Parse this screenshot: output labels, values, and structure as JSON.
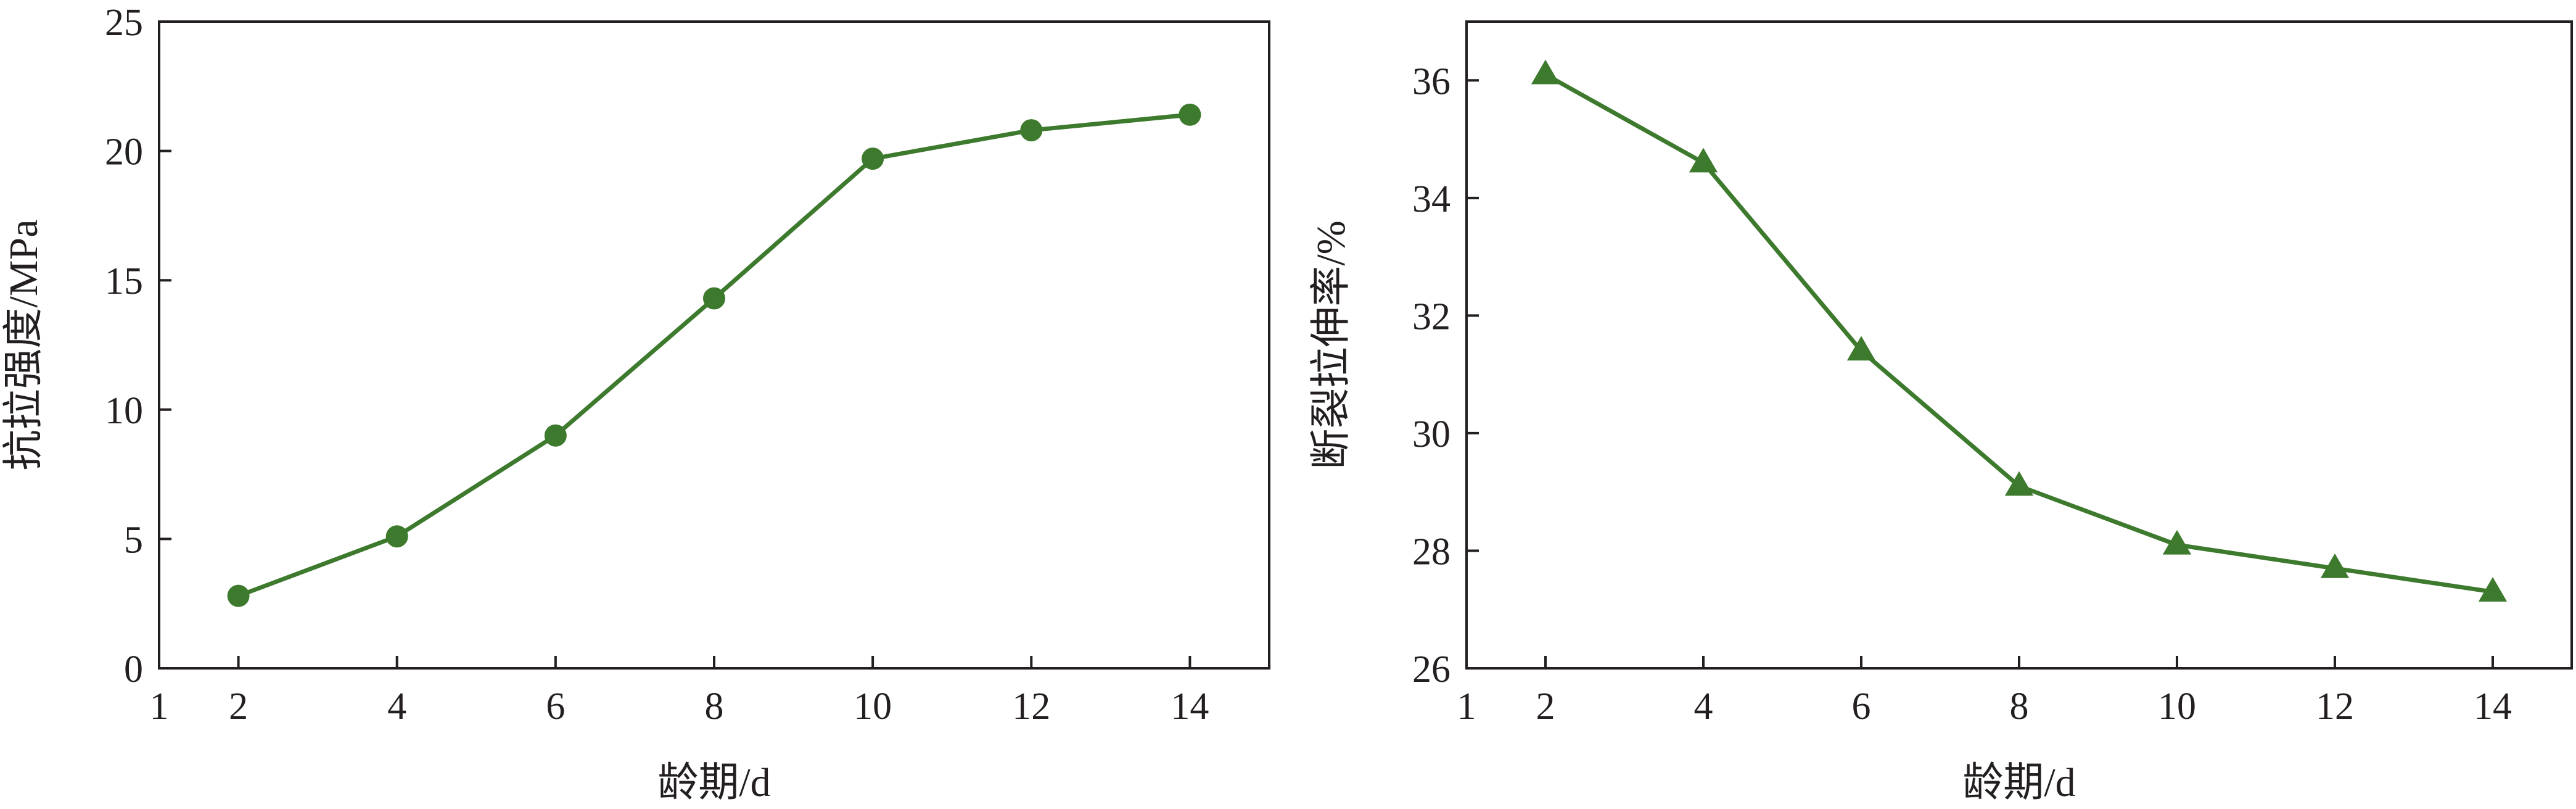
{
  "colors": {
    "series": "#3d7a2e",
    "axis": "#231f20",
    "background": "#ffffff"
  },
  "chart_data": [
    {
      "type": "line",
      "marker": "circle",
      "xlabel": "龄期/d",
      "ylabel": "抗拉强度/MPa",
      "xlim": [
        1,
        15
      ],
      "ylim": [
        0,
        25
      ],
      "x_ticks": [
        1,
        2,
        4,
        6,
        8,
        10,
        12,
        14
      ],
      "x_tick_labels": [
        "1",
        "2",
        "4",
        "6",
        "8",
        "10",
        "12",
        "14"
      ],
      "y_ticks": [
        0,
        5,
        10,
        15,
        20,
        25
      ],
      "y_tick_labels": [
        "0",
        "5",
        "10",
        "15",
        "20",
        "25"
      ],
      "grid": false,
      "series": [
        {
          "x": [
            2,
            4,
            6,
            8,
            10,
            12,
            14
          ],
          "values": [
            2.8,
            5.1,
            9.0,
            14.3,
            19.7,
            20.8,
            21.4
          ]
        }
      ]
    },
    {
      "type": "line",
      "marker": "triangle",
      "xlabel": "龄期/d",
      "ylabel": "断裂拉伸率/%",
      "xlim": [
        1,
        15
      ],
      "ylim": [
        26,
        37
      ],
      "x_ticks": [
        1,
        2,
        4,
        6,
        8,
        10,
        12,
        14
      ],
      "x_tick_labels": [
        "1",
        "2",
        "4",
        "6",
        "8",
        "10",
        "12",
        "14"
      ],
      "y_ticks": [
        26,
        28,
        30,
        32,
        34,
        36
      ],
      "y_tick_labels": [
        "26",
        "28",
        "30",
        "32",
        "34",
        "36"
      ],
      "grid": false,
      "series": [
        {
          "x": [
            2,
            4,
            6,
            8,
            10,
            12,
            14
          ],
          "values": [
            36.1,
            34.6,
            31.4,
            29.1,
            28.1,
            27.7,
            27.3
          ]
        }
      ]
    }
  ]
}
